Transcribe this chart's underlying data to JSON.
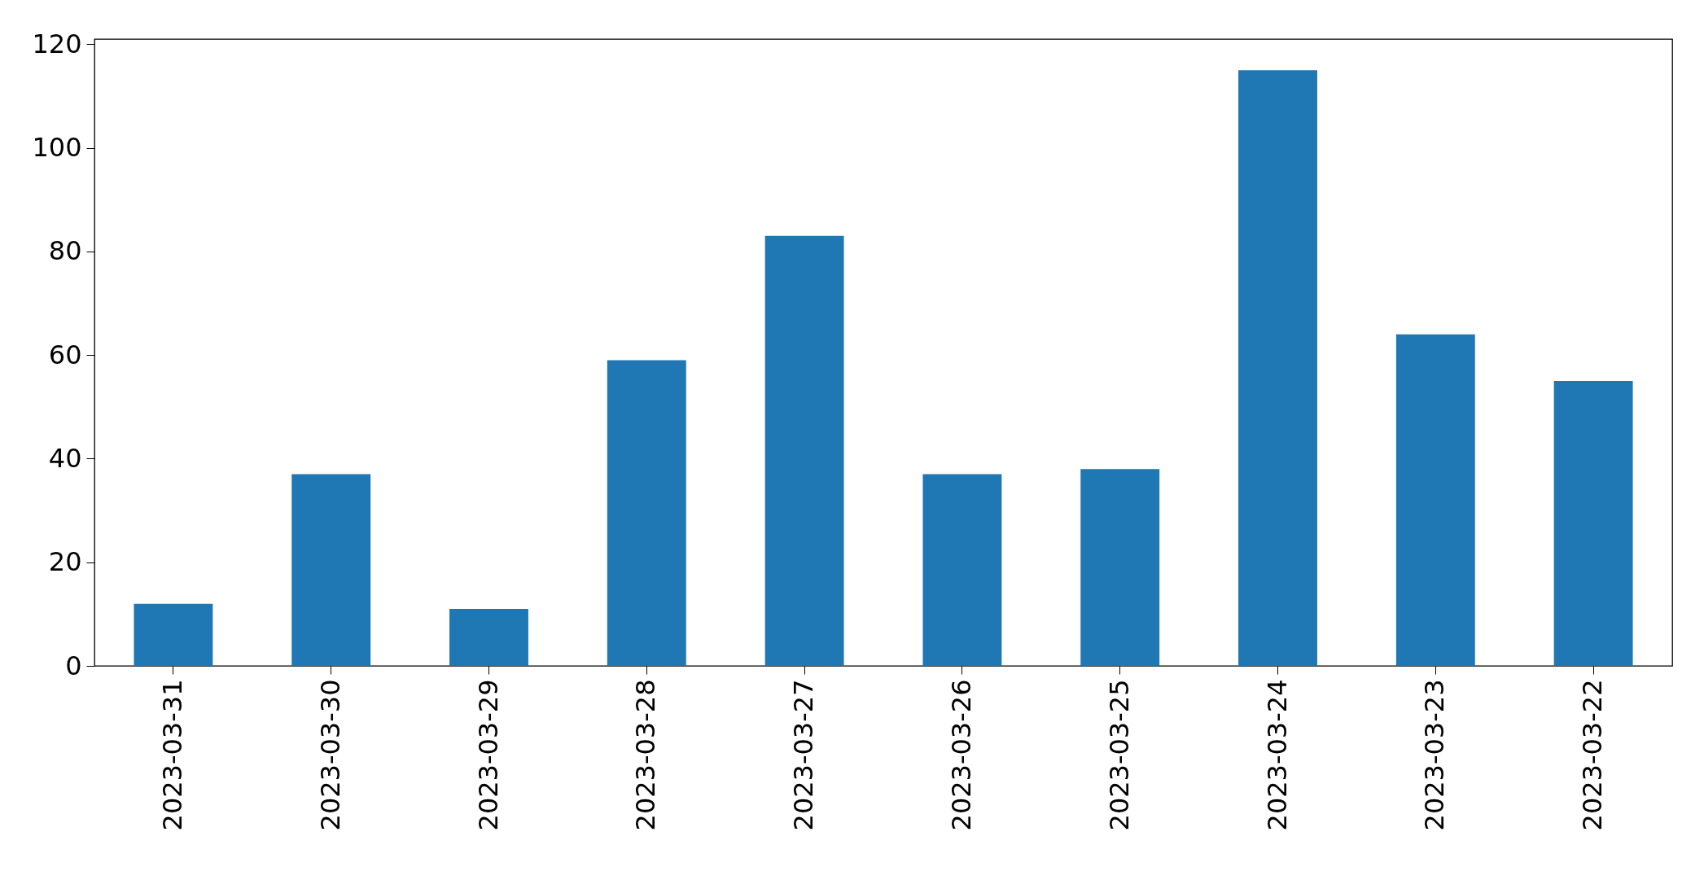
{
  "chart_data": {
    "type": "bar",
    "categories": [
      "2023-03-31",
      "2023-03-30",
      "2023-03-29",
      "2023-03-28",
      "2023-03-27",
      "2023-03-26",
      "2023-03-25",
      "2023-03-24",
      "2023-03-23",
      "2023-03-22"
    ],
    "values": [
      12,
      37,
      11,
      59,
      83,
      37,
      38,
      115,
      64,
      55
    ],
    "color": "#1f77b4",
    "ylim": [
      0,
      121
    ],
    "yticks": [
      0,
      20,
      40,
      60,
      80,
      100,
      120
    ],
    "grid": false
  }
}
